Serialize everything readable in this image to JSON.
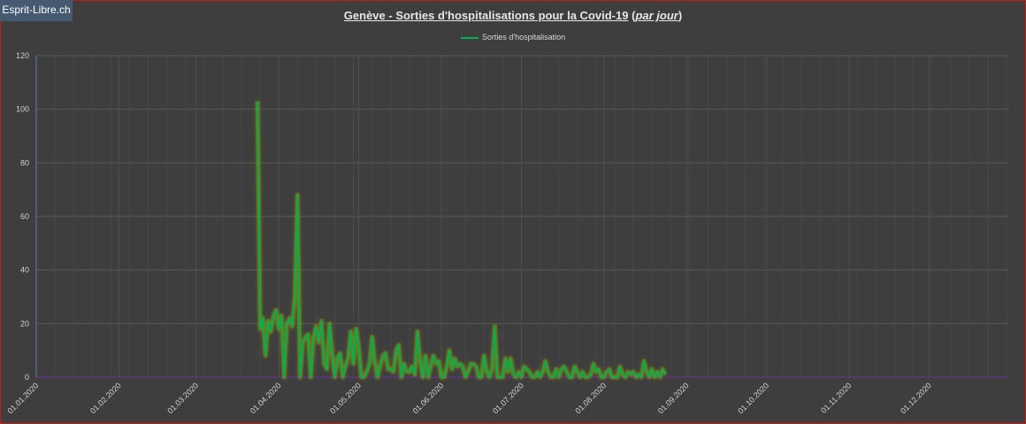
{
  "watermark": "Esprit-Libre.ch",
  "chart_data": {
    "type": "line",
    "title": "Genève - Sorties d'hospitalisations pour la Covid-19",
    "subtitle_paren": "par jour",
    "legend_position": "top-center",
    "grid": true,
    "ylim": [
      0,
      120
    ],
    "yticks": [
      0,
      20,
      40,
      60,
      80,
      100,
      120
    ],
    "xlim": [
      "2020-01-01",
      "2020-12-31"
    ],
    "xtick_labels": [
      "01.01.2020",
      "01.02.2020",
      "01.03.2020",
      "01.04.2020",
      "01.05.2020",
      "01.06.2020",
      "01.07.2020",
      "01.08.2020",
      "01.09.2020",
      "01.10.2020",
      "01.11.2020",
      "01.12.2020"
    ],
    "xtick_dates": [
      "2020-01-01",
      "2020-02-01",
      "2020-03-01",
      "2020-04-01",
      "2020-05-01",
      "2020-06-01",
      "2020-07-01",
      "2020-08-01",
      "2020-09-01",
      "2020-10-01",
      "2020-11-01",
      "2020-12-01"
    ],
    "colors": {
      "series": "#00b050",
      "glow": "#a0a000",
      "grid": "#5a5a5a",
      "axis": "#7030a0"
    },
    "series": [
      {
        "name": "Sorties d'hospitalisation",
        "start_date": "2020-03-24",
        "values": [
          103,
          18,
          22,
          8,
          21,
          17,
          23,
          25,
          18,
          23,
          0,
          20,
          22,
          19,
          30,
          68,
          0,
          13,
          15,
          16,
          0,
          15,
          19,
          13,
          21,
          5,
          3,
          20,
          9,
          0,
          7,
          9,
          0,
          4,
          7,
          17,
          5,
          18,
          11,
          0,
          0,
          2,
          5,
          15,
          6,
          0,
          4,
          8,
          9,
          3,
          3,
          2,
          10,
          12,
          0,
          5,
          2,
          2,
          4,
          1,
          17,
          6,
          0,
          8,
          0,
          4,
          8,
          5,
          6,
          0,
          0,
          4,
          10,
          3,
          7,
          4,
          5,
          4,
          0,
          2,
          5,
          5,
          4,
          0,
          0,
          8,
          2,
          0,
          3,
          19,
          0,
          0,
          0,
          7,
          2,
          7,
          1,
          0,
          2,
          0,
          4,
          3,
          2,
          0,
          0,
          2,
          0,
          2,
          6,
          2,
          0,
          0,
          3,
          0,
          3,
          4,
          2,
          0,
          0,
          4,
          2,
          0,
          2,
          0,
          0,
          1,
          5,
          2,
          3,
          0,
          0,
          2,
          3,
          0,
          0,
          0,
          4,
          1,
          0,
          2,
          1,
          2,
          0,
          1,
          0,
          6,
          2,
          0,
          3,
          0,
          2,
          0,
          3,
          1
        ]
      }
    ]
  }
}
